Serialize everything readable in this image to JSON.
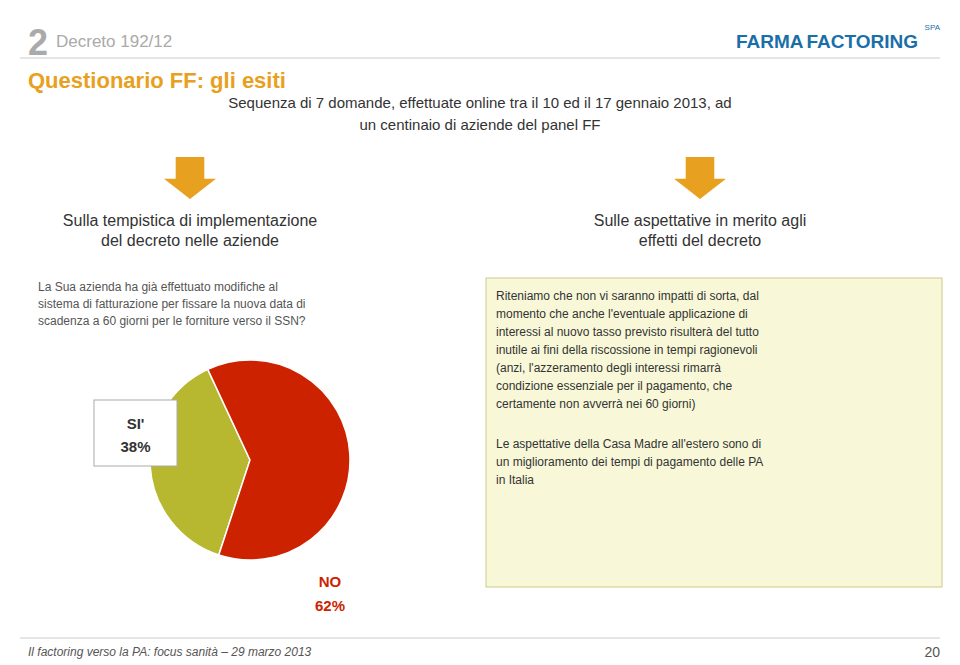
{
  "chart_data": {
    "type": "pie",
    "title": "Questionario FF: gli esiti",
    "subtitle": "Sequenza di 7 domande, effettuate online tra il 10 ed il 17 gennaio 2013, ad\nun centinaio di aziende del panel FF",
    "categories": [
      "SI'",
      "NO"
    ],
    "values": [
      38,
      62
    ],
    "value_labels": [
      "38%",
      "62%"
    ],
    "colors": [
      "#b8b830",
      "#cc2200"
    ],
    "data_labels": true,
    "annotations": [
      "2",
      "Decreto 192/12",
      "FARMA",
      "FACTORING",
      "SPA",
      "Sulla tempistica di implementazione\ndel decreto nelle aziende",
      "La Sua azienda ha già effettuato modifiche al\nsistema di fatturazione per fissare la nuova data di\nscadenza a 60 giorni per le forniture verso il SSN?",
      "Sulle aspettative in merito agli\neffetti del decreto",
      "Riteniamo che non vi saranno impatti di sorta, dal\nmomento che anche l'eventuale applicazione di\ninteressi al nuovo tasso previsto risulterà del tutto\ninutile ai fini della riscossione in tempi ragionevoli\n(anzi, l'azzeramento degli interessi rimarrà\ncondizione essenziale per il pagamento, che\ncertamente non avverrà nei 60 giorni)",
      "Le aspettative della Casa Madre all'estero sono di\nun miglioramento dei tempi di pagamento delle PA\nin Italia",
      "Il factoring verso la PA: focus sanità – 29 marzo 2013",
      "20"
    ]
  }
}
